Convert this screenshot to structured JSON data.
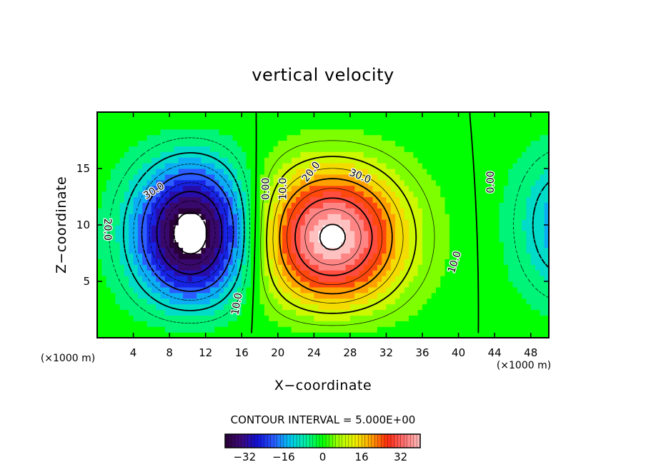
{
  "chart_data": {
    "type": "heatmap",
    "title": "vertical velocity",
    "xlabel": "X−coordinate",
    "ylabel": "Z−coordinate",
    "x_unit": "(×1000 m)",
    "z_unit": "(×1000 m)",
    "xlim": [
      0,
      50
    ],
    "ylim": [
      0,
      20
    ],
    "x_ticks": [
      4,
      8,
      12,
      16,
      20,
      24,
      28,
      32,
      36,
      40,
      44,
      48
    ],
    "y_ticks": [
      5,
      10,
      15
    ],
    "contour_interval_label": "CONTOUR INTERVAL = 5.000E+00",
    "contour_interval": 5,
    "colorbar": {
      "min": -40,
      "max": 40,
      "ticks": [
        -32,
        -16,
        0,
        16,
        32
      ]
    },
    "extrema": [
      {
        "type": "min",
        "x": 10.5,
        "z": 9.0,
        "value": -45
      },
      {
        "type": "max",
        "x": 26.0,
        "z": 8.5,
        "value": 42
      },
      {
        "type": "min",
        "x": 52.0,
        "z": 10.0,
        "value": -16
      }
    ],
    "contour_labels": [
      {
        "text": "30.0",
        "x": 6.3,
        "z": 13.0,
        "angle": -32
      },
      {
        "text": "20.0",
        "x": 1.1,
        "z": 9.6,
        "angle": 90
      },
      {
        "text": "10.0",
        "x": 15.5,
        "z": 3.0,
        "angle": -80
      },
      {
        "text": "0.00",
        "x": 18.7,
        "z": 13.2,
        "angle": -90
      },
      {
        "text": "10.0",
        "x": 20.6,
        "z": 13.2,
        "angle": -90
      },
      {
        "text": "20.0",
        "x": 23.7,
        "z": 14.7,
        "angle": -52
      },
      {
        "text": "30.0",
        "x": 29.1,
        "z": 14.3,
        "angle": 22
      },
      {
        "text": "10.0",
        "x": 39.6,
        "z": 6.7,
        "angle": -72
      },
      {
        "text": "0.00",
        "x": 43.6,
        "z": 13.8,
        "angle": -90
      }
    ],
    "colors": {
      "stops": [
        "#2a0038",
        "#3d0a7c",
        "#1010d8",
        "#2a5cff",
        "#00c8f0",
        "#00f0a0",
        "#00ff00",
        "#a8ff00",
        "#f0f000",
        "#ffa000",
        "#ff2a10",
        "#ff7070",
        "#ffc0c0"
      ],
      "positive_contour": "#000000",
      "negative_contour": "#000000"
    }
  }
}
